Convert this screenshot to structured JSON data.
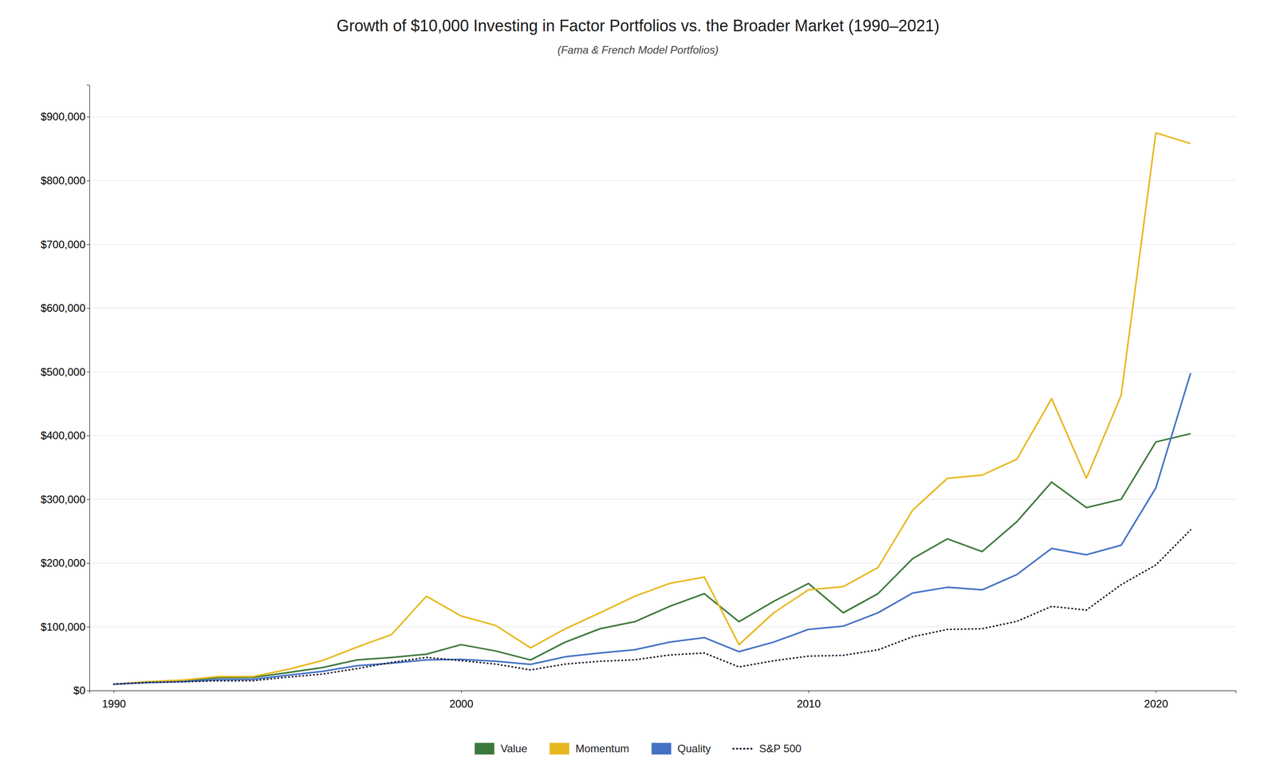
{
  "chart_data": {
    "type": "line",
    "title": "Growth of $10,000 Investing in Factor Portfolios vs. the Broader Market (1990–2021)",
    "subtitle": "(Fama & French Model Portfolios)",
    "x": [
      1990,
      1991,
      1992,
      1993,
      1994,
      1995,
      1996,
      1997,
      1998,
      1999,
      2000,
      2001,
      2002,
      2003,
      2004,
      2005,
      2006,
      2007,
      2008,
      2009,
      2010,
      2011,
      2012,
      2013,
      2014,
      2015,
      2016,
      2017,
      2018,
      2019,
      2020,
      2021
    ],
    "series": [
      {
        "name": "Value",
        "color": "#3d7a3d",
        "line_style": "solid",
        "values": [
          10000,
          13000,
          15500,
          20000,
          20500,
          28000,
          36000,
          48000,
          52000,
          57000,
          72000,
          62000,
          48000,
          76000,
          97000,
          108000,
          132000,
          152000,
          108000,
          140000,
          168000,
          122000,
          152000,
          207000,
          238000,
          218000,
          265000,
          327000,
          287000,
          300000,
          390000,
          403000
        ]
      },
      {
        "name": "Momentum",
        "color": "#e8b820",
        "line_style": "solid",
        "values": [
          10000,
          14000,
          16500,
          22000,
          22000,
          33000,
          47000,
          68000,
          88000,
          148000,
          117000,
          102000,
          67000,
          97000,
          122000,
          148000,
          168000,
          178000,
          72000,
          122000,
          158000,
          163000,
          193000,
          283000,
          333000,
          338000,
          363000,
          458000,
          333000,
          463000,
          875000,
          858000
        ]
      },
      {
        "name": "Quality",
        "color": "#4472c4",
        "line_style": "solid",
        "values": [
          10000,
          12500,
          14000,
          17000,
          17500,
          24000,
          30000,
          39000,
          43000,
          48000,
          49000,
          46000,
          41000,
          53000,
          59000,
          64000,
          76000,
          83000,
          61000,
          76000,
          96000,
          101000,
          122000,
          153000,
          162000,
          158000,
          182000,
          223000,
          213000,
          228000,
          318000,
          498000
        ]
      },
      {
        "name": "S&P 500",
        "color": "#1a1a2e",
        "line_style": "dotted",
        "values": [
          10000,
          12800,
          13800,
          15200,
          15400,
          21000,
          25800,
          34400,
          44200,
          52000,
          47000,
          41500,
          32300,
          41500,
          46000,
          48200,
          55800,
          58900,
          37000,
          46800,
          54000,
          55200,
          63800,
          84400,
          95900,
          97000,
          108600,
          132000,
          126300,
          166000,
          197000,
          252000
        ]
      }
    ],
    "xlim": [
      1989.3,
      2022.3
    ],
    "xticks": [
      1990,
      2000,
      2010,
      2020
    ],
    "ylim": [
      0,
      950000
    ],
    "yticks": [
      {
        "value": 0,
        "label": "$0"
      },
      {
        "value": 100000,
        "label": "$100,000"
      },
      {
        "value": 200000,
        "label": "$200,000"
      },
      {
        "value": 300000,
        "label": "$300,000"
      },
      {
        "value": 400000,
        "label": "$400,000"
      },
      {
        "value": 500000,
        "label": "$500,000"
      },
      {
        "value": 600000,
        "label": "$600,000"
      },
      {
        "value": 700000,
        "label": "$700,000"
      },
      {
        "value": 800000,
        "label": "$800,000"
      },
      {
        "value": 900000,
        "label": "$900,000"
      }
    ],
    "grid": true,
    "legend": "bottom"
  }
}
